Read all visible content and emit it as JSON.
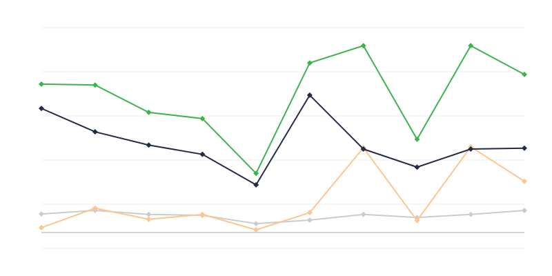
{
  "chart_data": {
    "type": "line",
    "title": "",
    "xlabel": "",
    "ylabel": "",
    "x": [
      0,
      1,
      2,
      3,
      4,
      5,
      6,
      7,
      8,
      9
    ],
    "ylim": [
      -3.6,
      46.4
    ],
    "gridlines": [
      -3.6,
      6.4,
      16.4,
      26.4,
      36.4,
      46.4
    ],
    "baseline": 0,
    "grid": true,
    "legend": "none",
    "series": [
      {
        "color": "#3cb44b",
        "values": [
          33.6,
          33.4,
          27.2,
          25.8,
          13.4,
          38.4,
          42.3,
          21.1,
          42.3,
          35.8
        ]
      },
      {
        "color": "#232b45",
        "values": [
          28.1,
          22.8,
          19.8,
          17.7,
          10.8,
          31.1,
          18.9,
          14.8,
          18.9,
          19.1
        ]
      },
      {
        "color": "#ffc58f",
        "values": [
          1.1,
          5.5,
          3.0,
          4.1,
          0.6,
          4.5,
          19.2,
          2.7,
          19.4,
          11.6
        ]
      },
      {
        "color": "#cccccc",
        "values": [
          4.2,
          5.0,
          4.1,
          3.9,
          2.0,
          2.8,
          4.1,
          3.4,
          4.1,
          5.0
        ]
      }
    ]
  }
}
